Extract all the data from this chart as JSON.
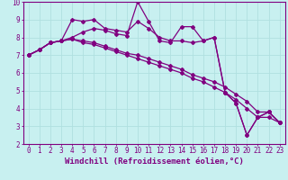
{
  "xlabel": "Windchill (Refroidissement éolien,°C)",
  "bg_color": "#c8f0f0",
  "line_color": "#800080",
  "xlim": [
    -0.5,
    23.5
  ],
  "ylim": [
    2,
    10
  ],
  "xticks": [
    0,
    1,
    2,
    3,
    4,
    5,
    6,
    7,
    8,
    9,
    10,
    11,
    12,
    13,
    14,
    15,
    16,
    17,
    18,
    19,
    20,
    21,
    22,
    23
  ],
  "yticks": [
    2,
    3,
    4,
    5,
    6,
    7,
    8,
    9,
    10
  ],
  "line1_y": [
    7.0,
    7.3,
    7.7,
    7.8,
    9.0,
    8.9,
    9.0,
    8.5,
    8.4,
    8.3,
    8.9,
    8.5,
    8.0,
    7.8,
    7.8,
    7.7,
    7.8,
    8.0,
    4.9,
    4.3,
    2.5,
    3.5,
    3.8,
    3.2
  ],
  "line2_y": [
    7.0,
    7.3,
    7.7,
    7.8,
    8.0,
    8.3,
    8.5,
    8.4,
    8.2,
    8.1,
    10.0,
    8.9,
    7.8,
    7.7,
    8.6,
    8.6,
    7.8,
    8.0,
    4.9,
    4.3,
    2.5,
    3.5,
    3.8,
    3.2
  ],
  "line3_y": [
    7.0,
    7.3,
    7.7,
    7.8,
    7.9,
    7.8,
    7.7,
    7.5,
    7.3,
    7.1,
    7.0,
    6.8,
    6.6,
    6.4,
    6.2,
    5.9,
    5.7,
    5.5,
    5.2,
    4.8,
    4.4,
    3.8,
    3.8,
    3.2
  ],
  "line4_y": [
    7.0,
    7.3,
    7.7,
    7.8,
    7.9,
    7.7,
    7.6,
    7.4,
    7.2,
    7.0,
    6.8,
    6.6,
    6.4,
    6.2,
    6.0,
    5.7,
    5.5,
    5.2,
    4.9,
    4.5,
    4.0,
    3.5,
    3.5,
    3.2
  ],
  "xlabel_fontsize": 6.5,
  "tick_fontsize": 5.5,
  "grid_color": "#b0e0e0"
}
